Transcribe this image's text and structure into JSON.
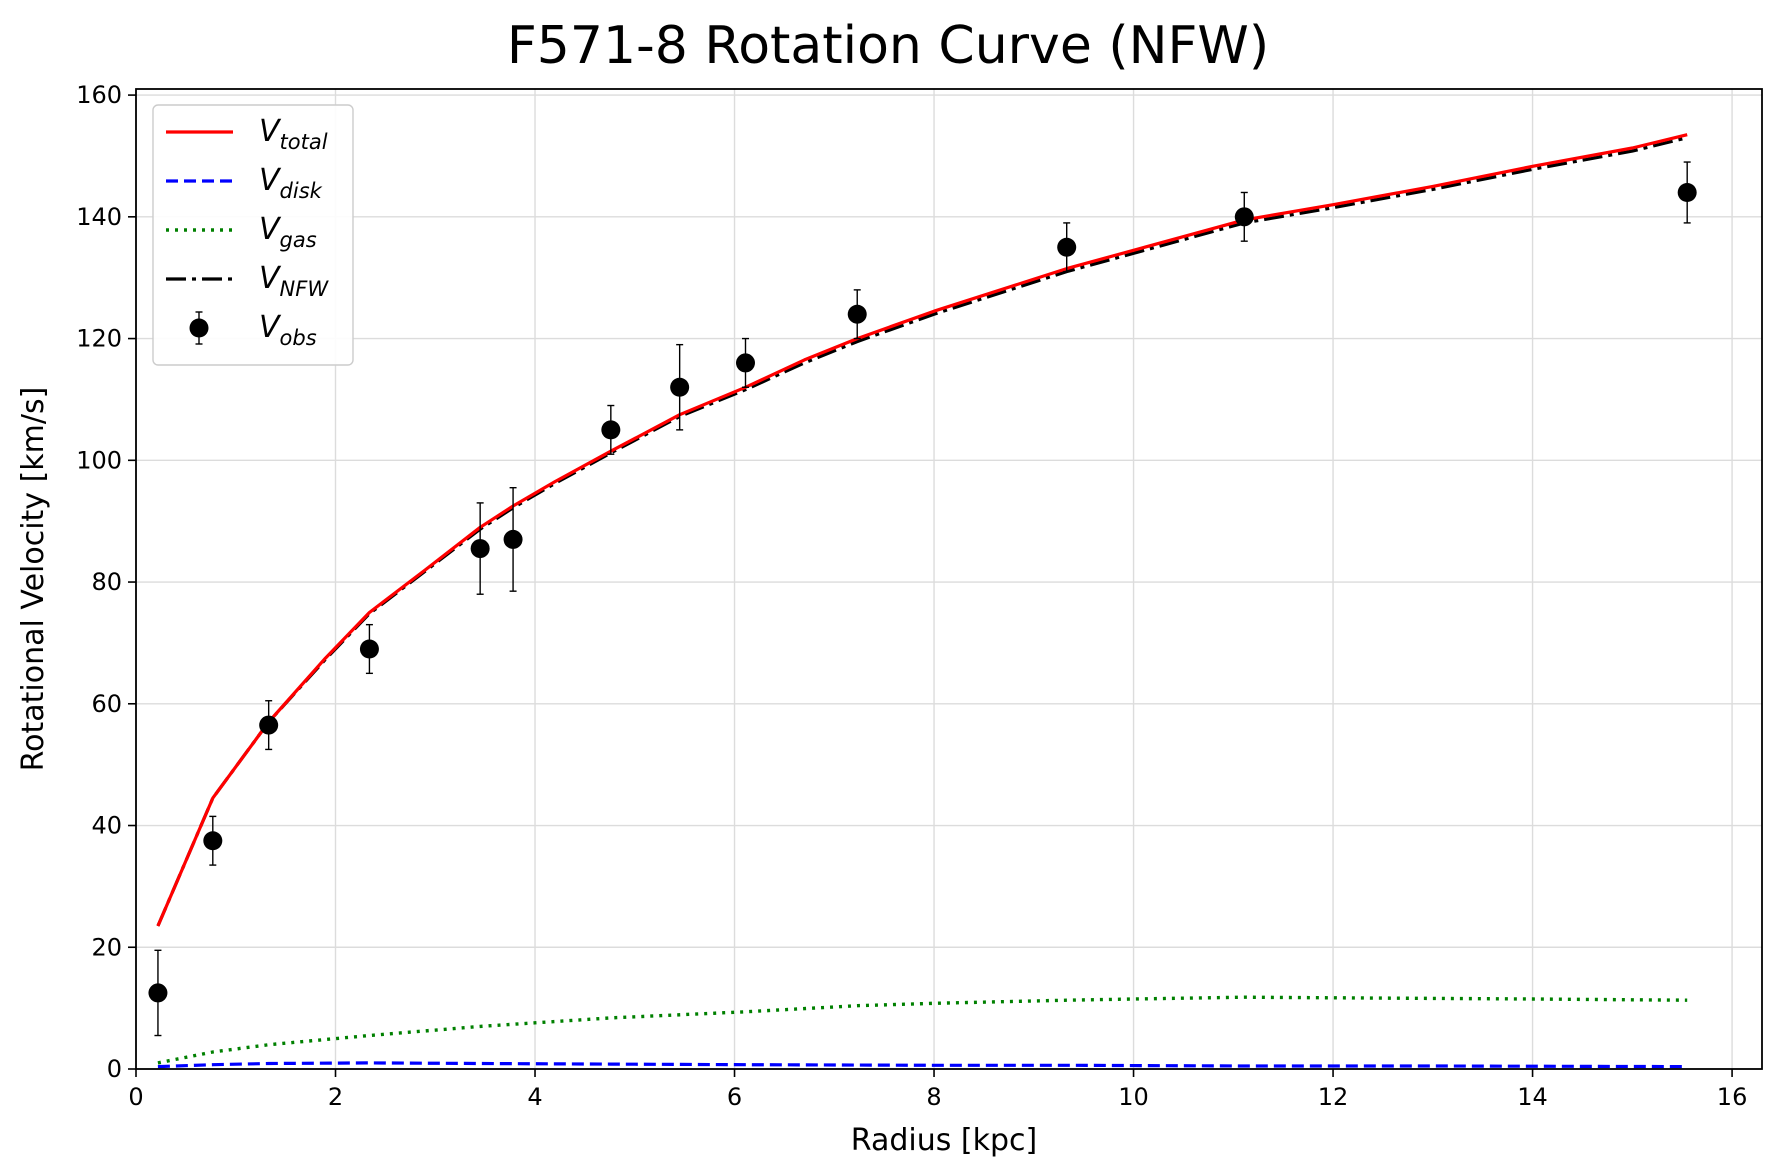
{
  "chart_data": {
    "type": "line",
    "title": "F571-8 Rotation Curve (NFW)",
    "xlabel": "Radius [kpc]",
    "ylabel": "Rotational Velocity [km/s]",
    "xlim": [
      0,
      16.3
    ],
    "ylim": [
      0,
      161
    ],
    "xticks": [
      0,
      2,
      4,
      6,
      8,
      10,
      12,
      14,
      16
    ],
    "yticks": [
      0,
      20,
      40,
      60,
      80,
      100,
      120,
      140,
      160
    ],
    "grid": true,
    "legend_position": "upper-left",
    "series": [
      {
        "key": "total",
        "name": "V_total",
        "legend_main": "V",
        "legend_sub": "total",
        "style": "solid",
        "color": "#ff0000",
        "x": [
          0.22,
          0.77,
          1.33,
          1.9,
          2.34,
          2.9,
          3.45,
          3.78,
          4.2,
          4.76,
          5.45,
          6.11,
          6.7,
          7.23,
          8.0,
          9.33,
          10.0,
          11.11,
          12.0,
          13.0,
          14.0,
          15.0,
          15.55
        ],
        "values": [
          23.5,
          44.5,
          57.0,
          67.5,
          75.0,
          82.0,
          89.0,
          92.5,
          96.5,
          101.5,
          107.5,
          112.0,
          116.5,
          120.0,
          124.5,
          131.5,
          134.5,
          139.5,
          142.0,
          145.0,
          148.3,
          151.3,
          153.5
        ]
      },
      {
        "key": "disk",
        "name": "V_disk",
        "legend_main": "V",
        "legend_sub": "disk",
        "style": "dashed",
        "color": "#0000ff",
        "x": [
          0.22,
          0.77,
          1.33,
          2.34,
          3.45,
          4.76,
          6.11,
          8.0,
          9.33,
          11.11,
          13.0,
          15.55
        ],
        "values": [
          0.4,
          0.7,
          0.9,
          1.0,
          0.9,
          0.8,
          0.7,
          0.6,
          0.6,
          0.5,
          0.5,
          0.4
        ]
      },
      {
        "key": "gas",
        "name": "V_gas",
        "legend_main": "V",
        "legend_sub": "gas",
        "style": "dotted",
        "color": "#008000",
        "x": [
          0.22,
          0.77,
          1.33,
          2.34,
          3.45,
          4.76,
          6.11,
          7.23,
          8.0,
          9.33,
          10.0,
          11.11,
          12.0,
          13.0,
          14.0,
          15.55
        ],
        "values": [
          1.0,
          2.8,
          4.0,
          5.5,
          7.0,
          8.4,
          9.4,
          10.4,
          10.8,
          11.3,
          11.5,
          11.8,
          11.7,
          11.6,
          11.5,
          11.3
        ]
      },
      {
        "key": "nfw",
        "name": "V_NFW",
        "legend_main": "V",
        "legend_sub": "NFW",
        "style": "dashdot",
        "color": "#000000",
        "x": [
          0.22,
          0.77,
          1.33,
          1.9,
          2.34,
          2.9,
          3.45,
          3.78,
          4.2,
          4.76,
          5.45,
          6.11,
          6.7,
          7.23,
          8.0,
          9.33,
          10.0,
          11.11,
          12.0,
          13.0,
          14.0,
          15.0,
          15.55
        ],
        "values": [
          23.5,
          44.5,
          57.0,
          67.3,
          74.8,
          81.8,
          88.7,
          92.2,
          96.2,
          101.2,
          107.2,
          111.6,
          116.0,
          119.5,
          124.0,
          131.0,
          134.0,
          139.0,
          141.5,
          144.5,
          147.8,
          150.8,
          153.0
        ]
      }
    ],
    "observations": {
      "key": "obs",
      "name": "V_obs",
      "legend_main": "V",
      "legend_sub": "obs",
      "color": "#000000",
      "x": [
        0.22,
        0.77,
        1.33,
        2.34,
        3.45,
        3.78,
        4.76,
        5.45,
        6.11,
        7.23,
        9.33,
        11.11,
        15.55
      ],
      "values": [
        12.5,
        37.5,
        56.5,
        69.0,
        85.5,
        87.0,
        105.0,
        112.0,
        116.0,
        124.0,
        135.0,
        140.0,
        144.0
      ],
      "errors": [
        7.0,
        4.0,
        4.0,
        4.0,
        7.5,
        8.5,
        4.0,
        7.0,
        4.0,
        4.0,
        4.0,
        4.0,
        5.0
      ]
    }
  }
}
